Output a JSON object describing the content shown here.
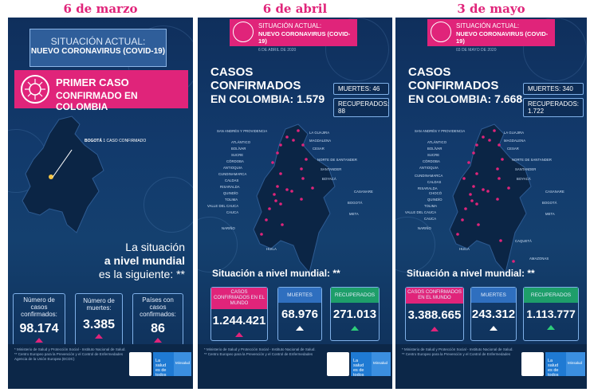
{
  "headers": [
    "6 de marzo",
    "6 de abril",
    "3 de mayo"
  ],
  "p1": {
    "title_line1": "SITUACIÓN ACTUAL:",
    "title_line2": "NUEVO CORONAVIRUS (COVID-19)",
    "banner_line1": "PRIMER CASO",
    "banner_line2": "CONFIRMADO EN COLOMBIA",
    "city_label": "BOGOTÁ",
    "city_value": "1 CASO CONFIRMADO",
    "world_line1": "La situación",
    "world_line2": "a nivel mundial",
    "world_line3": "es la siguiente: **",
    "stats": [
      {
        "label": "Número de casos confirmados:",
        "value": "98.174"
      },
      {
        "label": "Número de muertes:",
        "value": "3.385"
      },
      {
        "label": "Países con casos confirmados:",
        "value": "86"
      }
    ],
    "notes": "* Ministerio de Salud y Protección Social - Instituto Nacional de Salud. ** Centro Europeo para la Prevención y el Control de Enfermedades Agencia de la Unión Europea (ECDC)",
    "logo_salud": "La salud es de todos",
    "logo_min": "Minsalud"
  },
  "p2": {
    "title_line1": "SITUACIÓN ACTUAL:",
    "title_line2": "NUEVO CORONAVIRUS (COVID-19)",
    "date": "6 DE ABRIL DE 2020",
    "casos1": "CASOS",
    "casos2": "CONFIRMADOS",
    "casos3": "EN COLOMBIA: 1.579",
    "muertes": "MUERTES: 46",
    "recuperados": "RECUPERADOS: 88",
    "world_title": "Situación a nivel mundial: **",
    "stats": [
      {
        "label": "CASOS CONFIRMADOS EN EL MUNDO",
        "value": "1.244.421"
      },
      {
        "label": "MUERTES",
        "value": "68.976"
      },
      {
        "label": "RECUPERADOS",
        "value": "271.013"
      }
    ],
    "depts": [
      "SAN ANDRÉS Y PROVIDENCIA",
      "ATLÁNTICO",
      "BOLÍVAR",
      "SUCRE",
      "CÓRDOBA",
      "ANTIOQUIA",
      "CUNDINAMARCA",
      "CALDAS",
      "RISARALDA",
      "QUINDÍO",
      "TOLIMA",
      "VALLE DEL CAUCA",
      "CAUCA",
      "NARIÑO",
      "LA GUAJIRA",
      "MAGDALENA",
      "CESAR",
      "NORTE DE SANTANDER",
      "SANTANDER",
      "BOYACÁ",
      "CASANARE",
      "BOGOTÁ",
      "META",
      "HUILA"
    ],
    "notes": "* Ministerio de Salud y Protección Social - Instituto Nacional de Salud. ** Centro Europeo para la Prevención y el Control de Enfermedades",
    "logo_salud": "La salud es de todos",
    "logo_min": "Minsalud"
  },
  "p3": {
    "title_line1": "SITUACIÓN ACTUAL:",
    "title_line2": "NUEVO CORONAVIRUS (COVID-19)",
    "date": "03 DE MAYO DE 2020",
    "casos1": "CASOS",
    "casos2": "CONFIRMADOS",
    "casos3": "EN COLOMBIA: 7.668",
    "muertes": "MUERTES: 340",
    "recuperados": "RECUPERADOS: 1.722",
    "world_title": "Situación a nivel mundial: **",
    "stats": [
      {
        "label": "CASOS CONFIRMADOS EN EL MUNDO",
        "value": "3.388.665"
      },
      {
        "label": "MUERTES",
        "value": "243.312"
      },
      {
        "label": "RECUPERADOS",
        "value": "1.113.777"
      }
    ],
    "depts": [
      "SAN ANDRÉS Y PROVIDENCIA",
      "ATLÁNTICO",
      "BOLÍVAR",
      "SUCRE",
      "CÓRDOBA",
      "ANTIOQUIA",
      "CUNDINAMARCA",
      "CALDAS",
      "RISARALDA",
      "CHOCÓ",
      "QUINDÍO",
      "TOLIMA",
      "VALLE DEL CAUCA",
      "CAUCA",
      "NARIÑO",
      "LA GUAJIRA",
      "MAGDALENA",
      "CESAR",
      "NORTE DE SANTANDER",
      "SANTANDER",
      "BOYACÁ",
      "CASANARE",
      "BOGOTÁ",
      "META",
      "CAQUETÁ",
      "HUILA",
      "AMAZONAS"
    ],
    "notes": "* Ministerio de Salud y Protección Social - Instituto Nacional de Salud. ** Centro Europeo para la Prevención y el Control de Enfermedades",
    "logo_salud": "La salud es de todos",
    "logo_min": "Minsalud"
  },
  "colors": {
    "pink": "#e0247a",
    "navy": "#0f2f5c",
    "accent_blue": "#7fb0e8"
  }
}
